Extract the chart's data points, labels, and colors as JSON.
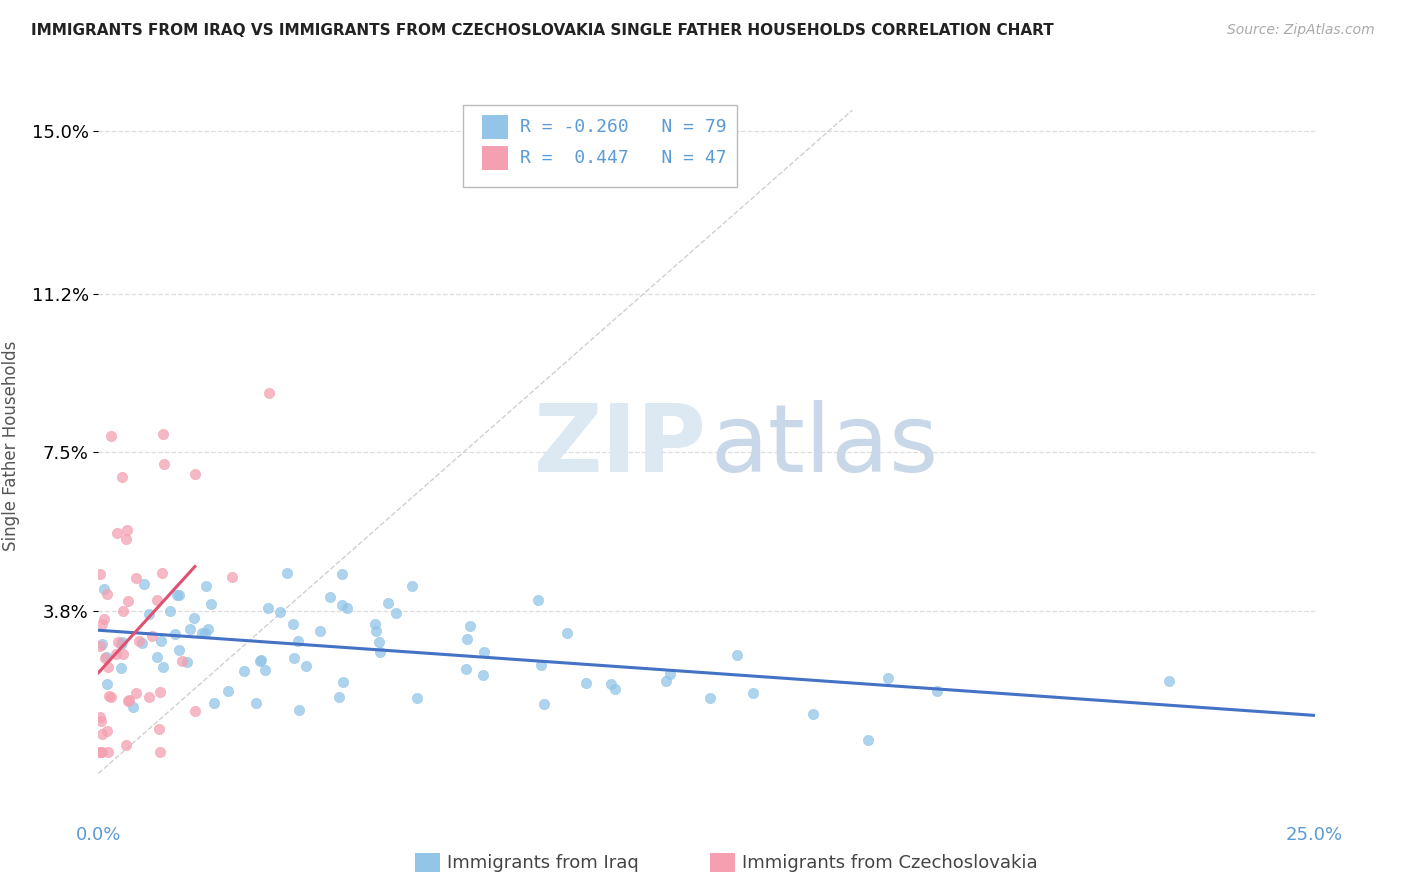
{
  "title": "IMMIGRANTS FROM IRAQ VS IMMIGRANTS FROM CZECHOSLOVAKIA SINGLE FATHER HOUSEHOLDS CORRELATION CHART",
  "source": "Source: ZipAtlas.com",
  "ylabel": "Single Father Households",
  "yaxis_values": [
    0.038,
    0.075,
    0.112,
    0.15
  ],
  "xmin": 0.0,
  "xmax": 0.25,
  "ymin": -0.01,
  "ymax": 0.163,
  "legend_iraq_R": "-0.260",
  "legend_iraq_N": "79",
  "legend_czech_R": " 0.447",
  "legend_czech_N": "47",
  "color_iraq": "#92C5E8",
  "color_czech": "#F4A0B0",
  "color_iraq_line": "#4472C4",
  "color_czech_line": "#E05070",
  "diagonal_color": "#D0D0D0",
  "grid_color": "#DDDDDD",
  "background": "#FFFFFF",
  "tick_color": "#5B9BD5",
  "title_color": "#222222",
  "ylabel_color": "#555555",
  "watermark_zip_color": "#DCE8F2",
  "watermark_atlas_color": "#C8D8E8"
}
